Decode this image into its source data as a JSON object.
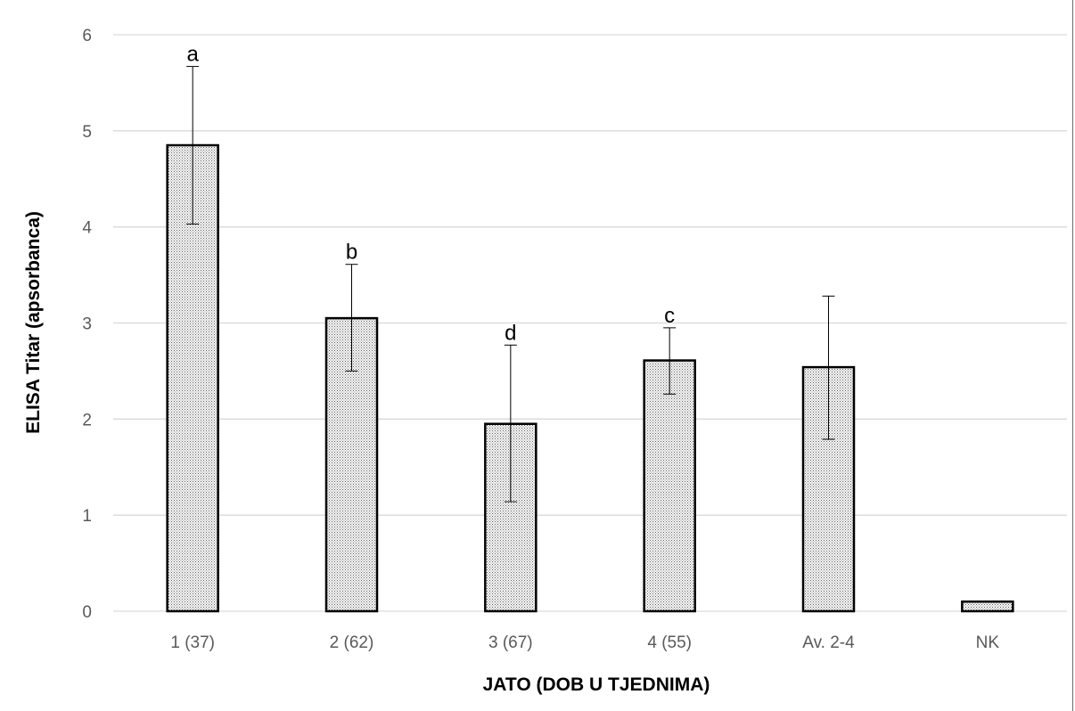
{
  "chart_data": {
    "type": "bar",
    "title": "",
    "xlabel": "JATO (DOB U TJEDNIMA)",
    "ylabel": "ELISA Titar (apsorbanca)",
    "ylim": [
      0,
      6
    ],
    "yticks": [
      0,
      1,
      2,
      3,
      4,
      5,
      6
    ],
    "grid": true,
    "legend": "none",
    "categories": [
      "1 (37)",
      "2 (62)",
      "3 (67)",
      "4 (55)",
      "Av. 2-4",
      "NK"
    ],
    "values": [
      4.85,
      3.05,
      1.95,
      2.61,
      2.54,
      0.1
    ],
    "error_upper": [
      5.67,
      3.61,
      2.77,
      2.95,
      3.28,
      null
    ],
    "error_lower": [
      4.03,
      2.5,
      1.14,
      2.26,
      1.79,
      null
    ],
    "significance_labels": [
      "a",
      "b",
      "d",
      "c",
      "",
      ""
    ],
    "colors": {
      "bar_fill": "#ffffff",
      "bar_pattern": "#5a5a5a",
      "bar_edge": "#000000",
      "grid": "#d9d9d9",
      "axis": "#d9d9d9",
      "tick_text": "#595959"
    }
  }
}
